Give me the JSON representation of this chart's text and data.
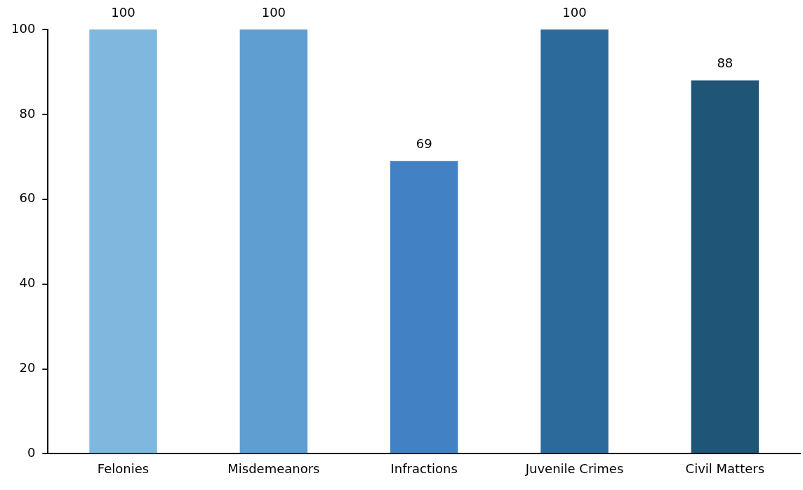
{
  "chart_data": {
    "type": "bar",
    "categories": [
      "Felonies",
      "Misdemeanors",
      "Infractions",
      "Juvenile Crimes",
      "Civil Matters"
    ],
    "values": [
      100,
      100,
      69,
      100,
      88
    ],
    "colors": [
      "#7fb8de",
      "#5e9ed1",
      "#4282c4",
      "#2c6a9c",
      "#1f5577"
    ],
    "ylim": [
      0,
      100
    ],
    "yticks": [
      0,
      20,
      40,
      60,
      80,
      100
    ],
    "data_labels": true,
    "grid": false,
    "legend": false
  }
}
